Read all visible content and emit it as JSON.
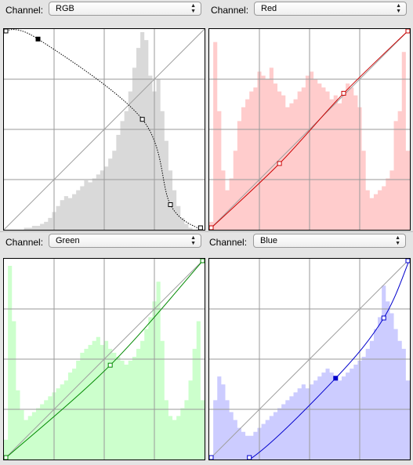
{
  "panels": [
    {
      "id": "rgb",
      "label": "Channel:",
      "channel": "RGB",
      "curve_color": "#000000",
      "hist_color": "#d9d9d9",
      "point_fill": "#ffffff",
      "curve_style": "dotted",
      "points": [
        [
          0.0,
          0.995
        ],
        [
          0.17,
          0.95
        ],
        [
          0.69,
          0.55
        ],
        [
          0.83,
          0.125
        ],
        [
          0.98,
          0.0
        ]
      ],
      "filled_points": [
        1
      ],
      "histogram": [
        0,
        0,
        0,
        0,
        0,
        1,
        1,
        2,
        2,
        3,
        4,
        6,
        9,
        12,
        15,
        17,
        16,
        18,
        20,
        22,
        25,
        24,
        26,
        28,
        30,
        32,
        36,
        40,
        48,
        55,
        60,
        70,
        82,
        92,
        100,
        96,
        78,
        70,
        76,
        60,
        45,
        30,
        20,
        12,
        6,
        3,
        1,
        0,
        0,
        0
      ]
    },
    {
      "id": "red",
      "label": "Channel:",
      "channel": "Red",
      "curve_color": "#cc0000",
      "hist_color": "#ffcccc",
      "point_fill": "#ffffff",
      "curve_style": "solid",
      "points": [
        [
          0.0,
          0.0
        ],
        [
          0.35,
          0.33
        ],
        [
          0.67,
          0.68
        ],
        [
          1.0,
          1.0
        ]
      ],
      "filled_points": [],
      "histogram": [
        4,
        95,
        60,
        30,
        20,
        26,
        40,
        55,
        62,
        66,
        70,
        72,
        80,
        78,
        76,
        82,
        74,
        70,
        68,
        62,
        64,
        66,
        70,
        72,
        78,
        80,
        76,
        74,
        72,
        70,
        66,
        68,
        64,
        70,
        74,
        72,
        68,
        62,
        40,
        20,
        16,
        18,
        20,
        22,
        26,
        30,
        55,
        60,
        90,
        40
      ]
    },
    {
      "id": "green",
      "label": "Channel:",
      "channel": "Green",
      "curve_color": "#008800",
      "hist_color": "#ccffcc",
      "point_fill": "#ffffff",
      "curve_style": "solid",
      "points": [
        [
          0.0,
          0.0
        ],
        [
          0.53,
          0.47
        ],
        [
          1.0,
          1.0
        ]
      ],
      "filled_points": [],
      "histogram": [
        10,
        98,
        70,
        35,
        25,
        20,
        22,
        24,
        26,
        28,
        30,
        32,
        34,
        36,
        38,
        40,
        44,
        46,
        50,
        54,
        56,
        58,
        60,
        62,
        58,
        60,
        56,
        54,
        52,
        50,
        48,
        50,
        52,
        56,
        60,
        66,
        72,
        80,
        90,
        60,
        30,
        22,
        20,
        22,
        26,
        30,
        40,
        56,
        70,
        30
      ]
    },
    {
      "id": "blue",
      "label": "Channel:",
      "channel": "Blue",
      "curve_color": "#0000cc",
      "hist_color": "#ccccff",
      "point_fill": "#ffffff",
      "curve_style": "solid",
      "points": [
        [
          0.0,
          0.0
        ],
        [
          0.2,
          0.0
        ],
        [
          0.63,
          0.405
        ],
        [
          0.87,
          0.705
        ],
        [
          1.0,
          1.0
        ]
      ],
      "filled_points": [
        2
      ],
      "histogram": [
        2,
        30,
        42,
        38,
        30,
        24,
        20,
        16,
        14,
        12,
        12,
        14,
        16,
        18,
        20,
        22,
        24,
        26,
        28,
        30,
        32,
        34,
        36,
        38,
        36,
        38,
        40,
        42,
        44,
        46,
        44,
        42,
        40,
        42,
        44,
        46,
        48,
        50,
        52,
        56,
        60,
        66,
        72,
        88,
        80,
        74,
        66,
        60,
        56,
        40
      ]
    }
  ]
}
